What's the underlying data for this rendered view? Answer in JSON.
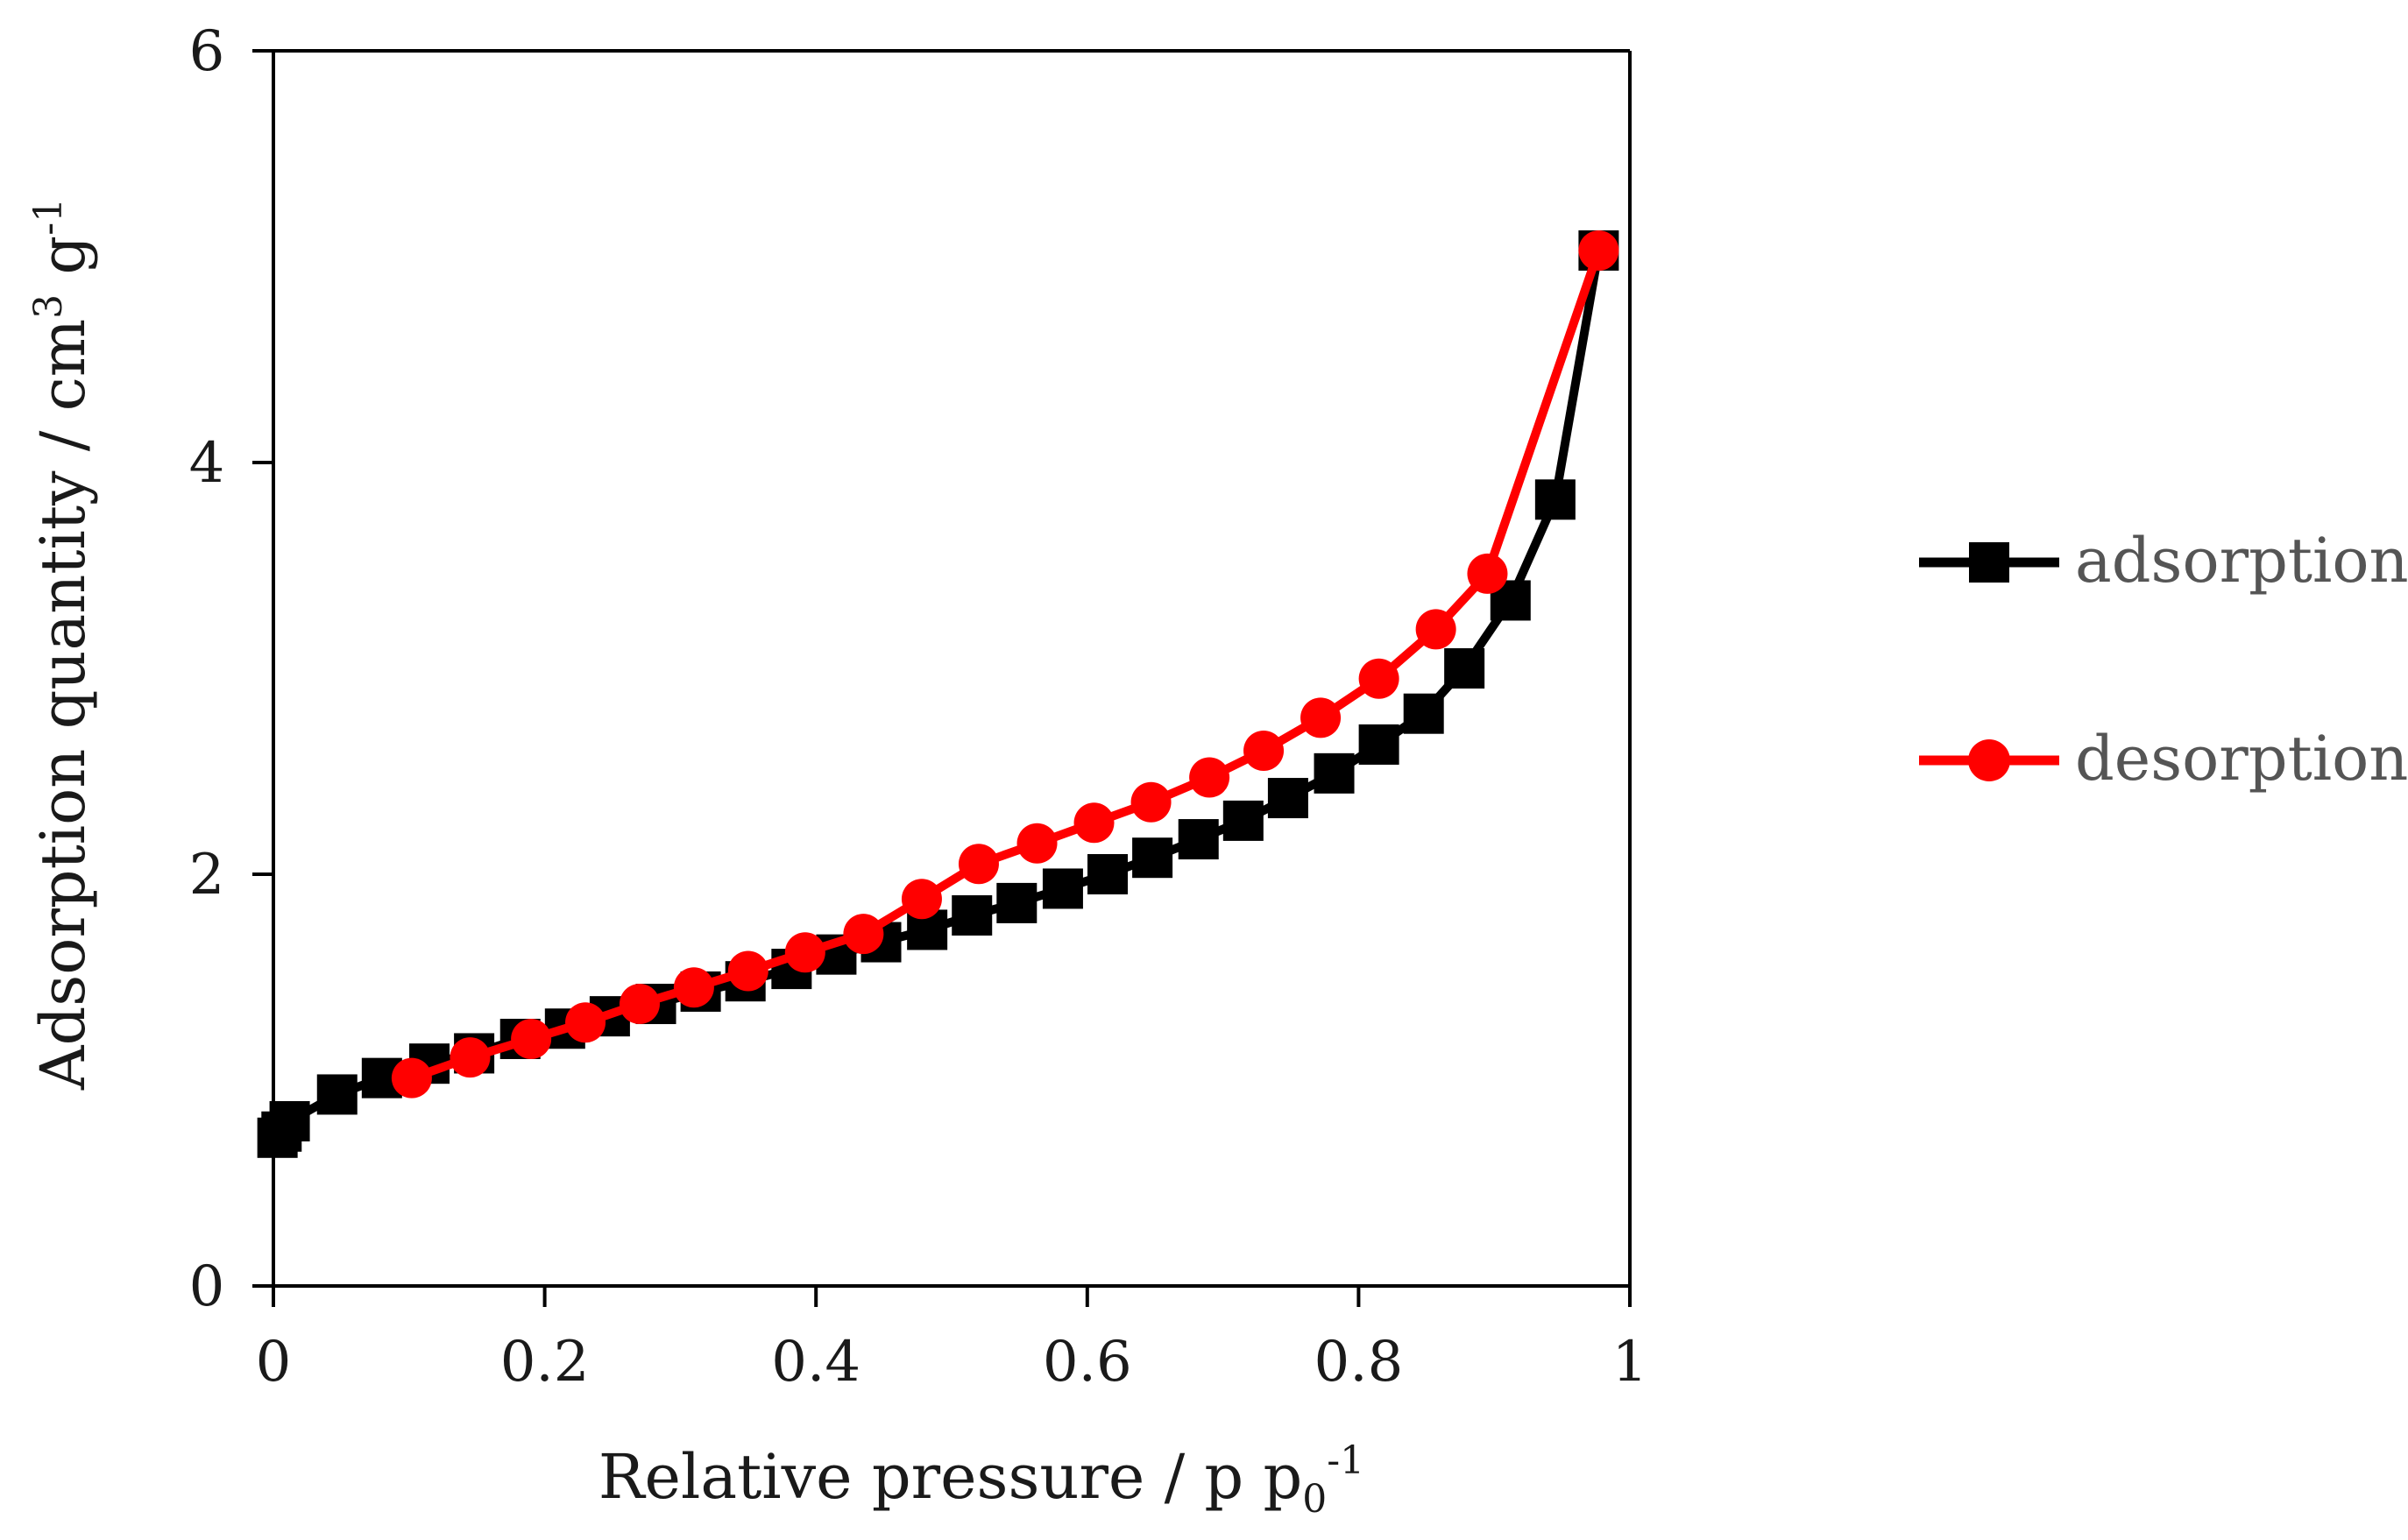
{
  "colors": {
    "adsorption": "#000000",
    "desorption": "#ff0000",
    "axis": "#000000"
  },
  "chart_data": {
    "type": "line",
    "title": "",
    "xlabel": {
      "main": "Relative pressure / p p",
      "sub": "0",
      "sup": "-1"
    },
    "ylabel": {
      "main": "Adsorption quantity / cm",
      "sup1": "3",
      "mid": " g",
      "sup2": "-1"
    },
    "xlim": [
      0,
      1
    ],
    "ylim": [
      0,
      6
    ],
    "xticks": [
      0,
      0.2,
      0.4,
      0.6,
      0.8,
      1
    ],
    "xtick_labels": [
      "0",
      "0.2",
      "0.4",
      "0.6",
      "0.8",
      "1"
    ],
    "yticks": [
      0,
      2,
      4,
      6
    ],
    "ytick_labels": [
      "0",
      "2",
      "4",
      "6"
    ],
    "grid": false,
    "legend_position": "right",
    "series": [
      {
        "name": "adsorption",
        "marker": "square",
        "x": [
          0.003,
          0.006,
          0.012,
          0.047,
          0.08,
          0.115,
          0.148,
          0.182,
          0.215,
          0.248,
          0.282,
          0.315,
          0.348,
          0.382,
          0.415,
          0.448,
          0.482,
          0.515,
          0.548,
          0.582,
          0.615,
          0.648,
          0.682,
          0.715,
          0.748,
          0.782,
          0.815,
          0.848,
          0.878,
          0.912,
          0.945,
          0.977
        ],
        "y": [
          0.72,
          0.75,
          0.8,
          0.93,
          1.01,
          1.08,
          1.13,
          1.2,
          1.25,
          1.31,
          1.37,
          1.43,
          1.48,
          1.54,
          1.61,
          1.67,
          1.73,
          1.8,
          1.86,
          1.93,
          2.0,
          2.08,
          2.17,
          2.26,
          2.37,
          2.49,
          2.63,
          2.78,
          3.0,
          3.33,
          3.82,
          5.03
        ]
      },
      {
        "name": "desorption",
        "marker": "circle",
        "x": [
          0.102,
          0.145,
          0.19,
          0.23,
          0.27,
          0.31,
          0.35,
          0.392,
          0.435,
          0.478,
          0.52,
          0.563,
          0.605,
          0.647,
          0.69,
          0.73,
          0.772,
          0.815,
          0.857,
          0.895,
          0.977
        ],
        "y": [
          1.01,
          1.11,
          1.2,
          1.28,
          1.37,
          1.45,
          1.53,
          1.62,
          1.71,
          1.88,
          2.05,
          2.15,
          2.25,
          2.35,
          2.47,
          2.6,
          2.76,
          2.95,
          3.19,
          3.46,
          5.03
        ]
      }
    ]
  }
}
